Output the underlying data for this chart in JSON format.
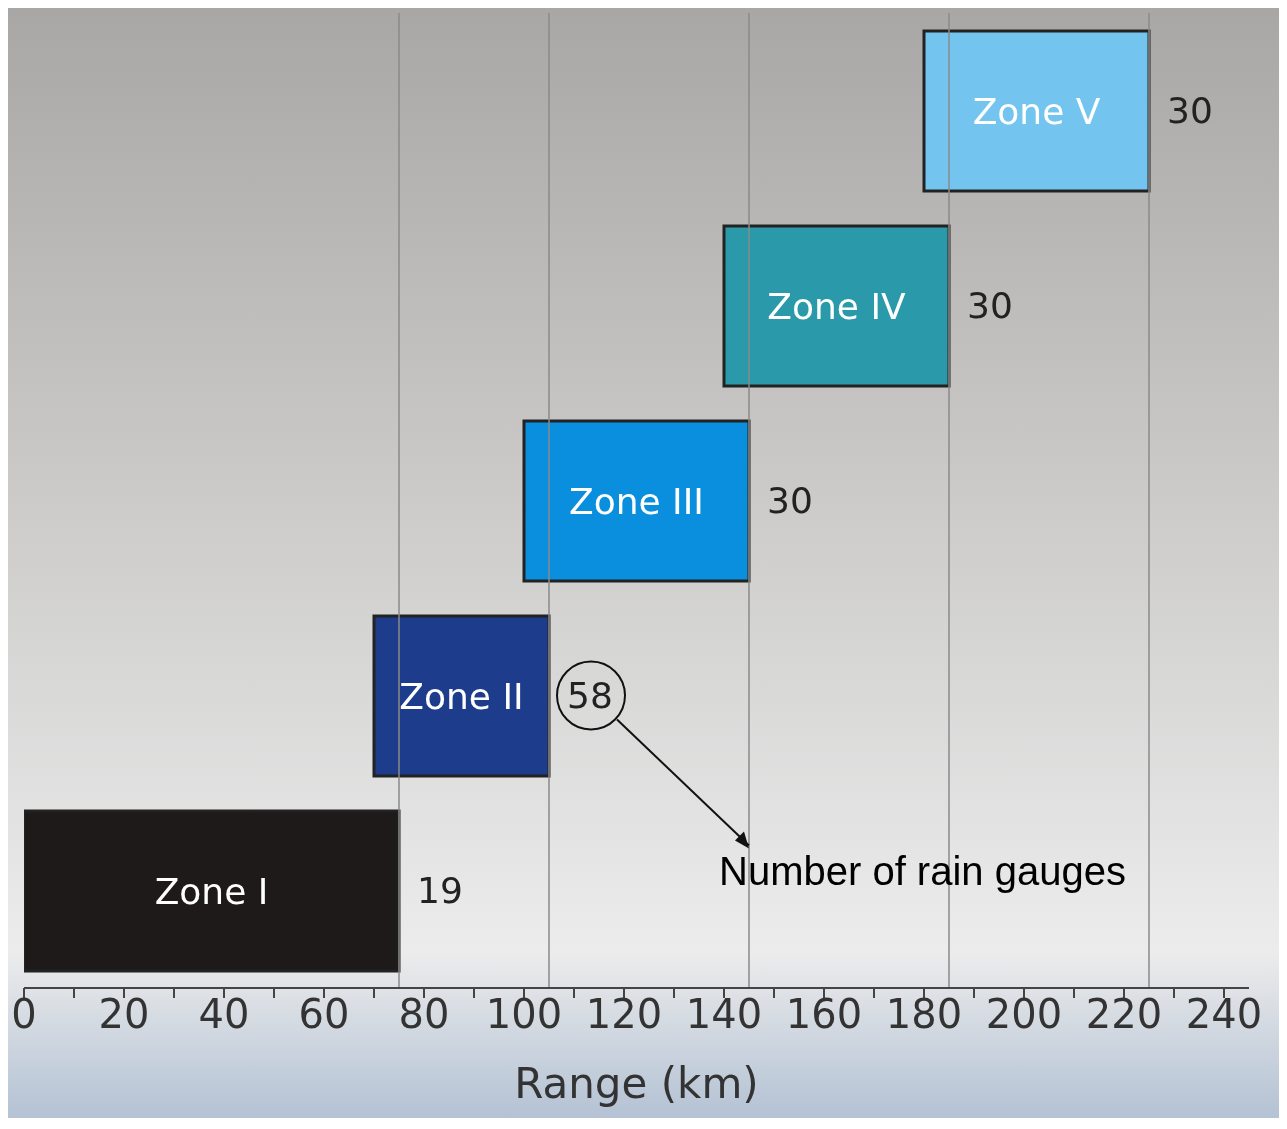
{
  "chart_data": {
    "type": "bar",
    "orientation": "horizontal",
    "xlabel": "Range (km)",
    "categories": [
      "Zone V",
      "Zone IV",
      "Zone III",
      "Zone II",
      "Zone I"
    ],
    "base": [
      180,
      140,
      100,
      70,
      0
    ],
    "values": [
      45,
      45,
      45,
      35,
      75
    ],
    "colors": [
      "#73c5f0",
      "#2a9aaa",
      "#0a8ede",
      "#1d3c8c",
      "#1e1a19"
    ],
    "xlim": [
      0,
      245
    ],
    "xticks": [
      0,
      {
        "value": 10,
        "label": null
      },
      20,
      {
        "value": 30,
        "label": null
      },
      40,
      {
        "value": 50,
        "label": null
      },
      60,
      {
        "value": 70,
        "label": null
      },
      80,
      {
        "value": 90,
        "label": null
      },
      100,
      {
        "value": 110,
        "label": null
      },
      120,
      {
        "value": 130,
        "label": null
      },
      140,
      {
        "value": 150,
        "label": null
      },
      160,
      {
        "value": 170,
        "label": null
      },
      180,
      {
        "value": 190,
        "label": null
      },
      200,
      {
        "value": 210,
        "label": null
      },
      220,
      {
        "value": 230,
        "label": null
      },
      240
    ],
    "tick_labels": "x",
    "ref_lines": [
      {
        "axis": "x",
        "value": 75,
        "label": null,
        "color": "#8a8a8a"
      },
      {
        "axis": "x",
        "value": 105,
        "label": null,
        "color": "#8a8a8a"
      },
      {
        "axis": "x",
        "value": 145,
        "label": null,
        "color": "#8a8a8a"
      },
      {
        "axis": "x",
        "value": 185,
        "label": null,
        "color": "#8a8a8a"
      },
      {
        "axis": "x",
        "value": 225,
        "label": null,
        "color": "#8a8a8a"
      }
    ],
    "annotations": [
      {
        "text": "30",
        "x": 225,
        "y": "Zone V"
      },
      {
        "text": "30",
        "x": 185,
        "y": "Zone IV"
      },
      {
        "text": "30",
        "x": 145,
        "y": "Zone III"
      },
      {
        "text": "58",
        "x": 105,
        "y": "Zone II"
      },
      {
        "text": "19",
        "x": 75,
        "y": "Zone I"
      },
      "Number of rain gauges"
    ]
  }
}
